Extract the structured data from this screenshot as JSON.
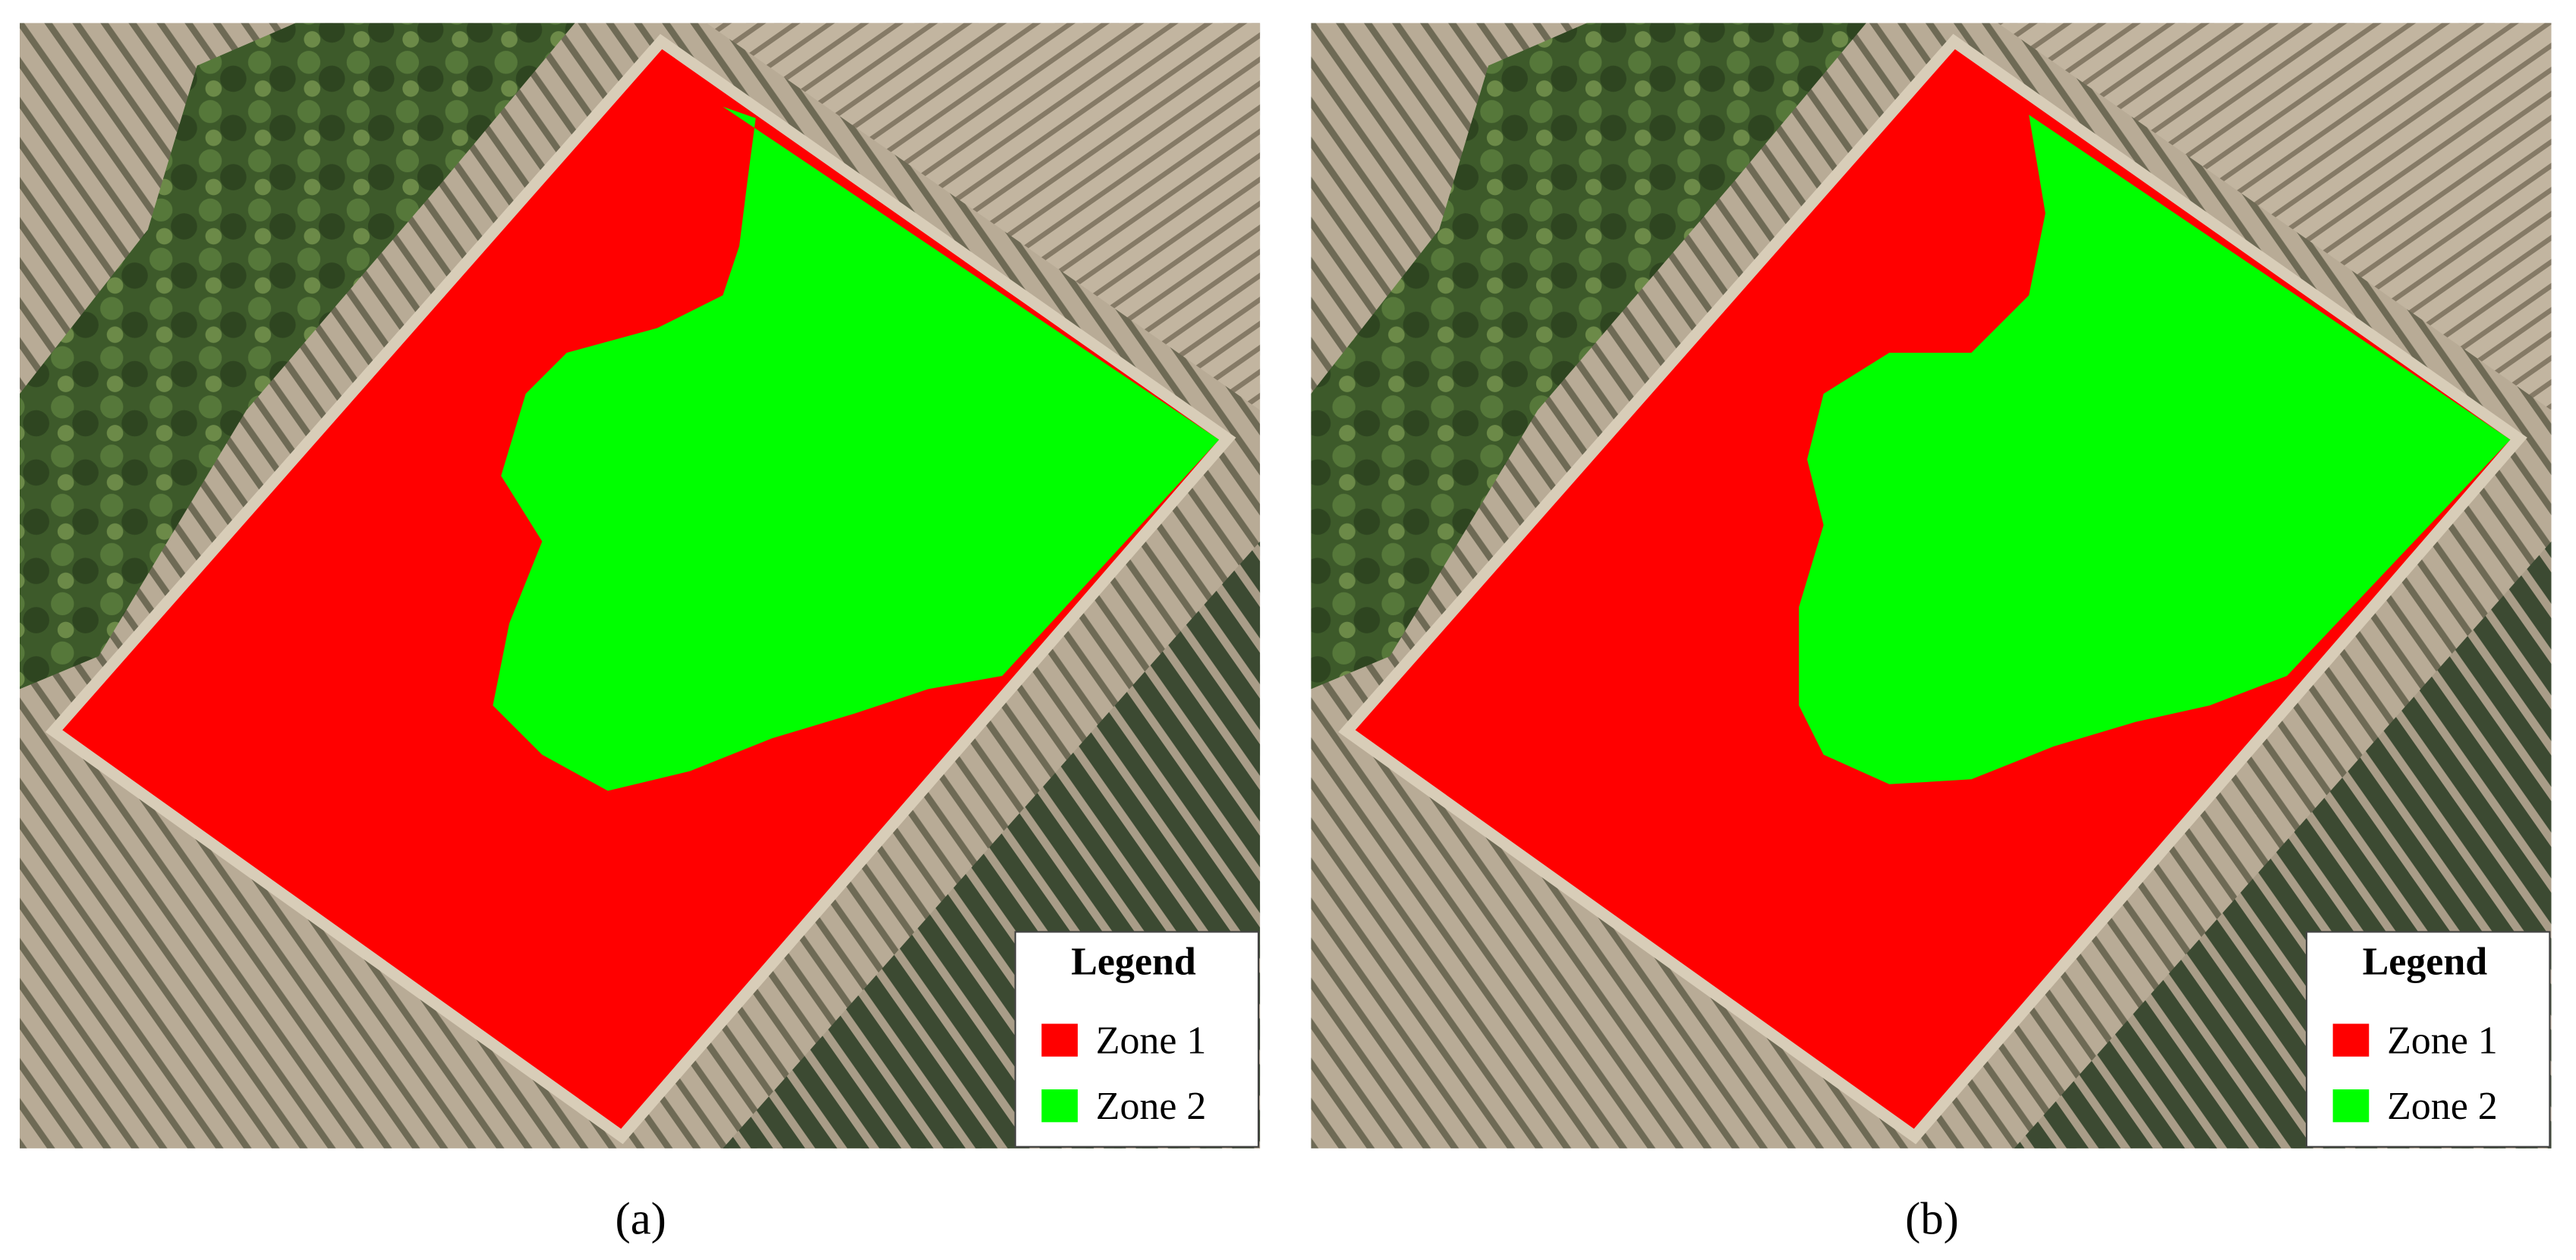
{
  "panels": [
    {
      "caption": "(a)",
      "legend": {
        "title": "Legend",
        "items": [
          {
            "name": "Zone 1",
            "color": "#ff0000"
          },
          {
            "name": "Zone 2",
            "color": "#00ff00"
          }
        ]
      }
    },
    {
      "caption": "(b)",
      "legend": {
        "title": "Legend",
        "items": [
          {
            "name": "Zone 1",
            "color": "#ff0000"
          },
          {
            "name": "Zone 2",
            "color": "#00ff00"
          }
        ]
      }
    }
  ]
}
